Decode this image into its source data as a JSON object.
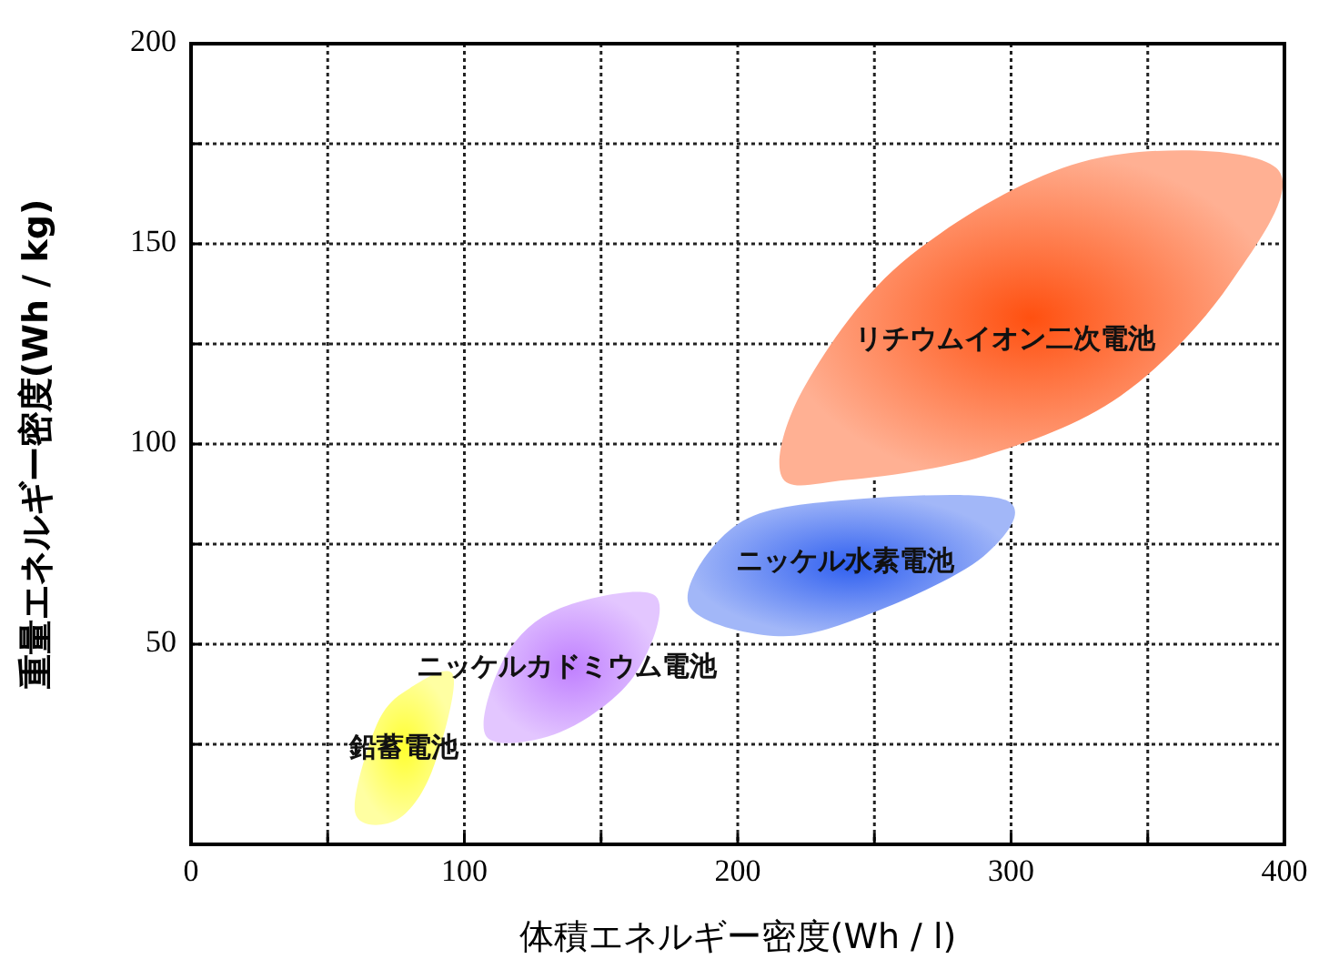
{
  "chart_data": {
    "type": "area",
    "xlabel": "体積エネルギー密度(Wh / l)",
    "ylabel": "重量エネルギー密度(Wh / kg)",
    "xlim": [
      0,
      400
    ],
    "ylim": [
      0,
      200
    ],
    "xticks": [
      0,
      {
        "value": 50,
        "label": null
      },
      100,
      {
        "value": 150,
        "label": null
      },
      200,
      {
        "value": 250,
        "label": null
      },
      300,
      {
        "value": 350,
        "label": null
      },
      400
    ],
    "yticks": [
      {
        "value": 0,
        "label": null
      },
      {
        "value": 25,
        "label": null
      },
      50,
      {
        "value": 75,
        "label": null
      },
      100,
      {
        "value": 125,
        "label": null
      },
      150,
      {
        "value": 175,
        "label": null
      },
      200
    ],
    "grid": true,
    "line_style": "dotted",
    "series": [
      {
        "name": "鉛蓄電池",
        "color": "#ffff30",
        "x": [
          60,
          68,
          80,
          96,
          88,
          75
        ],
        "values": [
          8,
          30,
          39,
          42,
          18,
          6
        ]
      },
      {
        "name": "ニッケルカドミウム電池",
        "color": "#c080ff",
        "x": [
          108,
          115,
          135,
          170,
          162,
          135
        ],
        "values": [
          27,
          47,
          59,
          62,
          42,
          28
        ]
      },
      {
        "name": "ニッケル水素電池",
        "color": "#3060f0",
        "x": [
          182,
          200,
          240,
          298,
          290,
          250,
          215
        ],
        "values": [
          60,
          80,
          86,
          86,
          72,
          58,
          52
        ]
      },
      {
        "name": "リチウムイオン二次電池",
        "color": "#ff5010",
        "x": [
          216,
          225,
          263,
          329,
          397,
          380,
          340,
          290,
          240
        ],
        "values": [
          92,
          115,
          147,
          171,
          169,
          140,
          112,
          97,
          91
        ]
      }
    ]
  }
}
